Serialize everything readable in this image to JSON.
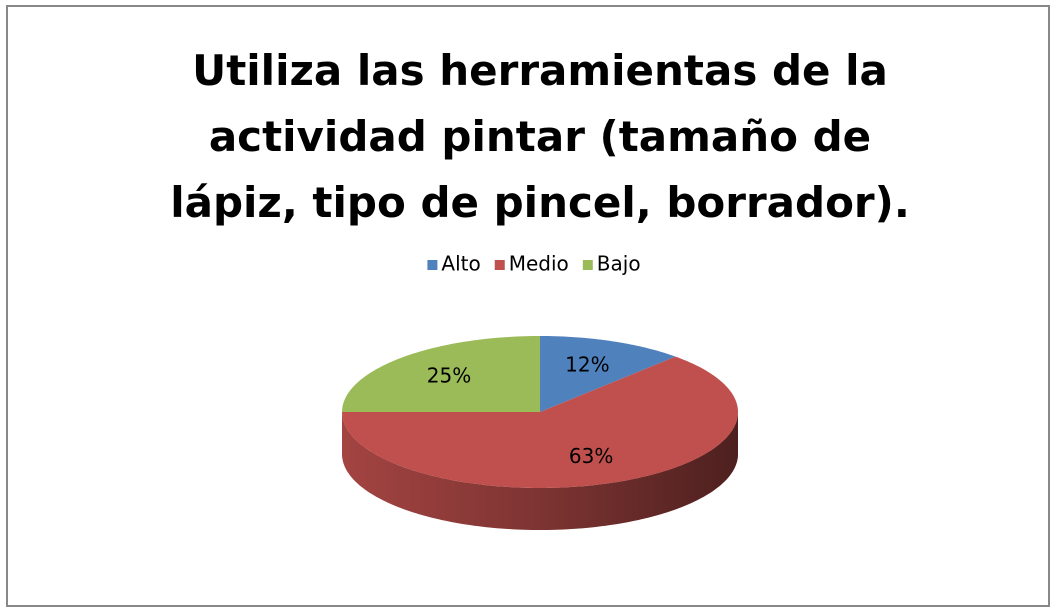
{
  "chart_data": {
    "type": "pie",
    "title": "Utiliza las herramientas de la actividad pintar (tamaño de lápiz, tipo de pincel, borrador).",
    "categories": [
      "Alto",
      "Medio",
      "Bajo"
    ],
    "values": [
      12,
      63,
      25
    ],
    "value_labels": [
      "12%",
      "63%",
      "25%"
    ],
    "colors": [
      "#4f81bd",
      "#c0504d",
      "#9bbb59"
    ],
    "legend": "top"
  }
}
